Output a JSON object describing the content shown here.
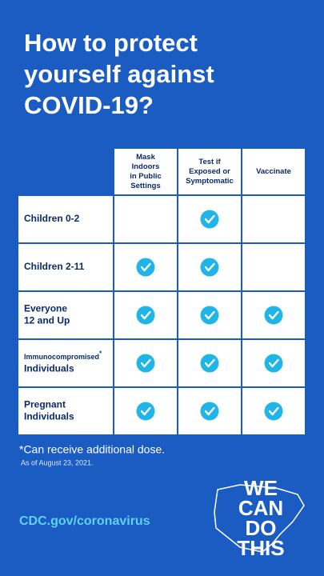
{
  "header": {
    "title_lines": [
      "How to protect",
      "yourself against",
      "COVID-19?"
    ]
  },
  "table": {
    "columns": [
      [
        "Mask",
        "Indoors",
        "in Public",
        "Settings"
      ],
      [
        "Test if",
        "Exposed or",
        "Symptomatic"
      ],
      [
        "Vaccinate"
      ]
    ],
    "rows": [
      {
        "label": [
          "Children 0-2"
        ],
        "checks": [
          false,
          true,
          false
        ]
      },
      {
        "label": [
          "Children 2-11"
        ],
        "checks": [
          true,
          true,
          false
        ]
      },
      {
        "label": [
          "Everyone",
          "12 and Up"
        ],
        "checks": [
          true,
          true,
          true
        ]
      },
      {
        "label": [
          "Immunocompromised",
          "Individuals"
        ],
        "note_mark": "*",
        "checks": [
          true,
          true,
          true
        ]
      },
      {
        "label": [
          "Pregnant",
          "Individuals"
        ],
        "checks": [
          true,
          true,
          true
        ]
      }
    ]
  },
  "footer": {
    "note": "*Can receive additional dose.",
    "date": "As of August 23, 2021.",
    "link": "CDC.gov/coronavirus",
    "logo_lines": [
      "WE",
      "CAN",
      "DO",
      "THIS"
    ]
  }
}
